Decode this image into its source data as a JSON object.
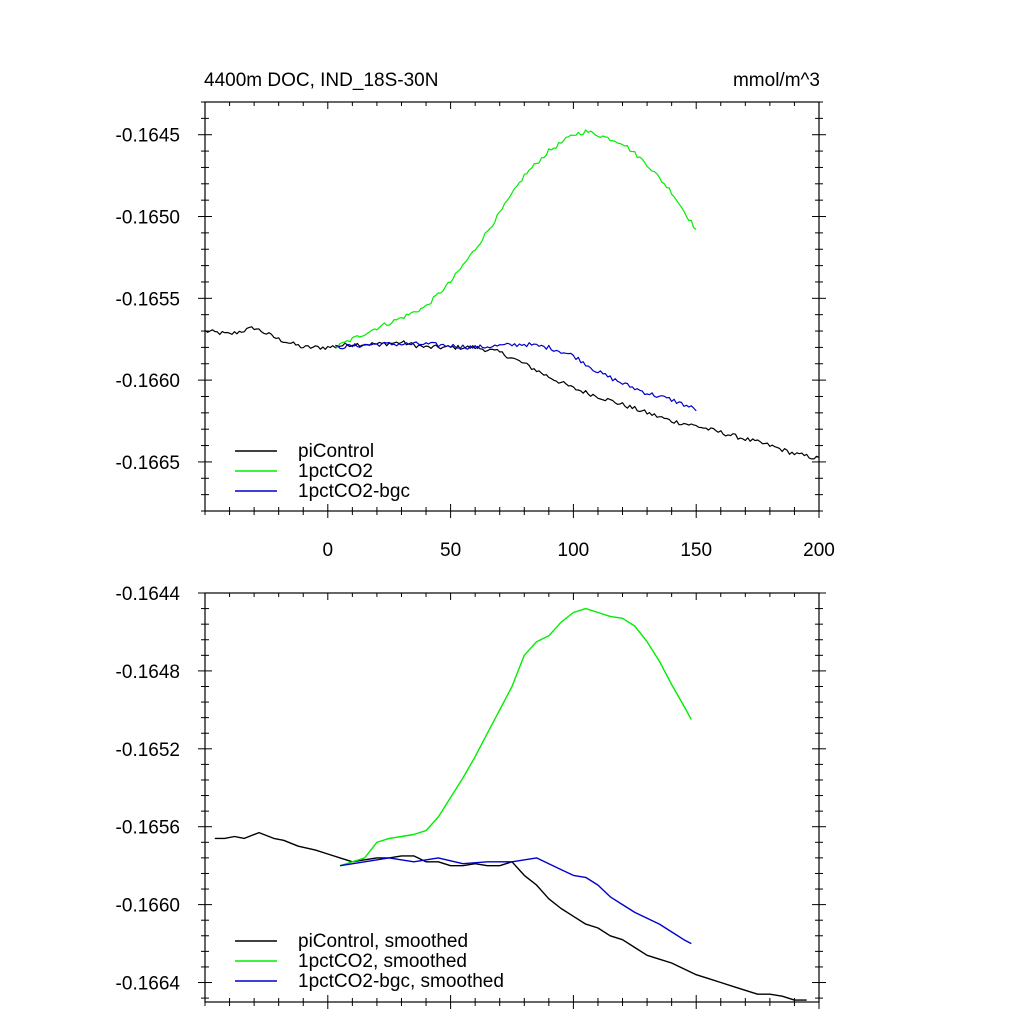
{
  "chart_data": [
    {
      "type": "line",
      "title": "4400m DOC, IND_18S-30N",
      "units": "mmol/m^3",
      "xlim": [
        -50,
        200
      ],
      "ylim": [
        -0.1668,
        -0.1643
      ],
      "x_ticks": [
        0,
        50,
        100,
        150,
        200
      ],
      "y_ticks": [
        -0.1645,
        -0.165,
        -0.1655,
        -0.166,
        -0.1665
      ],
      "x_tick_labels": [
        "0",
        "50",
        "100",
        "150",
        "200"
      ],
      "y_tick_labels": [
        "-0.1645",
        "-0.1650",
        "-0.1655",
        "-0.1660",
        "-0.1665"
      ],
      "legend": [
        "piControl",
        "1pctCO2",
        "1pctCO2-bgc"
      ],
      "noise": true,
      "series": [
        {
          "name": "piControl",
          "color": "#000000",
          "x_start": -50,
          "x_end": 200,
          "anchors": [
            [
              -50,
              -0.1657
            ],
            [
              -40,
              -0.16572
            ],
            [
              -30,
              -0.16568
            ],
            [
              -20,
              -0.16575
            ],
            [
              -10,
              -0.1658
            ],
            [
              0,
              -0.1658
            ],
            [
              10,
              -0.16578
            ],
            [
              20,
              -0.16578
            ],
            [
              30,
              -0.16577
            ],
            [
              40,
              -0.1658
            ],
            [
              50,
              -0.1658
            ],
            [
              60,
              -0.1658
            ],
            [
              70,
              -0.16583
            ],
            [
              80,
              -0.1659
            ],
            [
              90,
              -0.16598
            ],
            [
              100,
              -0.16605
            ],
            [
              110,
              -0.1661
            ],
            [
              120,
              -0.16615
            ],
            [
              130,
              -0.1662
            ],
            [
              140,
              -0.16625
            ],
            [
              150,
              -0.16628
            ],
            [
              160,
              -0.16632
            ],
            [
              170,
              -0.16636
            ],
            [
              180,
              -0.1664
            ],
            [
              190,
              -0.16645
            ],
            [
              200,
              -0.16648
            ]
          ]
        },
        {
          "name": "1pctCO2",
          "color": "#00ee00",
          "x_start": 3,
          "x_end": 150,
          "anchors": [
            [
              3,
              -0.1658
            ],
            [
              10,
              -0.16575
            ],
            [
              20,
              -0.16568
            ],
            [
              30,
              -0.16562
            ],
            [
              40,
              -0.16555
            ],
            [
              50,
              -0.1654
            ],
            [
              60,
              -0.1652
            ],
            [
              70,
              -0.16498
            ],
            [
              80,
              -0.16475
            ],
            [
              90,
              -0.1646
            ],
            [
              100,
              -0.1645
            ],
            [
              105,
              -0.16448
            ],
            [
              110,
              -0.1645
            ],
            [
              120,
              -0.16455
            ],
            [
              130,
              -0.16468
            ],
            [
              140,
              -0.16485
            ],
            [
              150,
              -0.16508
            ]
          ]
        },
        {
          "name": "1pctCO2-bgc",
          "color": "#0000cc",
          "x_start": 3,
          "x_end": 150,
          "anchors": [
            [
              3,
              -0.1658
            ],
            [
              20,
              -0.16578
            ],
            [
              40,
              -0.16578
            ],
            [
              60,
              -0.1658
            ],
            [
              80,
              -0.16578
            ],
            [
              90,
              -0.1658
            ],
            [
              100,
              -0.16585
            ],
            [
              110,
              -0.16595
            ],
            [
              120,
              -0.16602
            ],
            [
              130,
              -0.16608
            ],
            [
              140,
              -0.16612
            ],
            [
              150,
              -0.16618
            ]
          ]
        }
      ]
    },
    {
      "type": "line",
      "title": "",
      "xlim": [
        -50,
        200
      ],
      "ylim": [
        -0.1665,
        -0.1644
      ],
      "x_ticks": [
        0,
        50,
        100,
        150,
        200
      ],
      "y_ticks": [
        -0.1644,
        -0.1648,
        -0.1652,
        -0.1656,
        -0.166,
        -0.1664
      ],
      "x_tick_labels": [],
      "y_tick_labels": [
        "-0.1644",
        "-0.1648",
        "-0.1652",
        "-0.1656",
        "-0.1660",
        "-0.1664"
      ],
      "legend": [
        "piControl, smoothed",
        "1pctCO2, smoothed",
        "1pctCO2-bgc, smoothed"
      ],
      "noise": false,
      "series": [
        {
          "name": "piControl, smoothed",
          "color": "#000000",
          "points": [
            [
              -46,
              -0.16566
            ],
            [
              -42,
              -0.16566
            ],
            [
              -38,
              -0.16565
            ],
            [
              -34,
              -0.16566
            ],
            [
              -28,
              -0.16563
            ],
            [
              -22,
              -0.16566
            ],
            [
              -18,
              -0.16567
            ],
            [
              -12,
              -0.1657
            ],
            [
              -5,
              -0.16572
            ],
            [
              0,
              -0.16574
            ],
            [
              5,
              -0.16576
            ],
            [
              10,
              -0.16578
            ],
            [
              15,
              -0.16577
            ],
            [
              20,
              -0.16576
            ],
            [
              25,
              -0.16576
            ],
            [
              30,
              -0.16575
            ],
            [
              35,
              -0.16575
            ],
            [
              40,
              -0.16578
            ],
            [
              45,
              -0.16578
            ],
            [
              50,
              -0.1658
            ],
            [
              55,
              -0.1658
            ],
            [
              60,
              -0.16579
            ],
            [
              65,
              -0.1658
            ],
            [
              70,
              -0.1658
            ],
            [
              75,
              -0.16578
            ],
            [
              80,
              -0.16585
            ],
            [
              85,
              -0.1659
            ],
            [
              90,
              -0.16597
            ],
            [
              95,
              -0.16602
            ],
            [
              100,
              -0.16606
            ],
            [
              105,
              -0.1661
            ],
            [
              110,
              -0.16612
            ],
            [
              115,
              -0.16616
            ],
            [
              120,
              -0.16618
            ],
            [
              125,
              -0.16622
            ],
            [
              130,
              -0.16626
            ],
            [
              135,
              -0.16628
            ],
            [
              140,
              -0.1663
            ],
            [
              145,
              -0.16633
            ],
            [
              150,
              -0.16636
            ],
            [
              155,
              -0.16638
            ],
            [
              160,
              -0.1664
            ],
            [
              165,
              -0.16642
            ],
            [
              170,
              -0.16644
            ],
            [
              175,
              -0.16646
            ],
            [
              180,
              -0.16646
            ],
            [
              185,
              -0.16647
            ],
            [
              190,
              -0.16649
            ],
            [
              195,
              -0.16649
            ]
          ]
        },
        {
          "name": "1pctCO2, smoothed",
          "color": "#00ee00",
          "points": [
            [
              5,
              -0.1658
            ],
            [
              10,
              -0.16578
            ],
            [
              15,
              -0.16576
            ],
            [
              20,
              -0.16568
            ],
            [
              25,
              -0.16566
            ],
            [
              30,
              -0.16565
            ],
            [
              35,
              -0.16564
            ],
            [
              40,
              -0.16562
            ],
            [
              45,
              -0.16555
            ],
            [
              50,
              -0.16545
            ],
            [
              55,
              -0.16535
            ],
            [
              60,
              -0.16524
            ],
            [
              65,
              -0.16512
            ],
            [
              70,
              -0.165
            ],
            [
              75,
              -0.16488
            ],
            [
              80,
              -0.16472
            ],
            [
              85,
              -0.16465
            ],
            [
              90,
              -0.16462
            ],
            [
              95,
              -0.16455
            ],
            [
              100,
              -0.1645
            ],
            [
              105,
              -0.16448
            ],
            [
              110,
              -0.1645
            ],
            [
              115,
              -0.16452
            ],
            [
              120,
              -0.16453
            ],
            [
              125,
              -0.16457
            ],
            [
              130,
              -0.16465
            ],
            [
              135,
              -0.16475
            ],
            [
              140,
              -0.16487
            ],
            [
              145,
              -0.16498
            ],
            [
              148,
              -0.16505
            ]
          ]
        },
        {
          "name": "1pctCO2-bgc, smoothed",
          "color": "#0000cc",
          "points": [
            [
              5,
              -0.1658
            ],
            [
              15,
              -0.16578
            ],
            [
              25,
              -0.16576
            ],
            [
              35,
              -0.16578
            ],
            [
              45,
              -0.16576
            ],
            [
              55,
              -0.16579
            ],
            [
              65,
              -0.16578
            ],
            [
              75,
              -0.16578
            ],
            [
              85,
              -0.16576
            ],
            [
              90,
              -0.16579
            ],
            [
              95,
              -0.16582
            ],
            [
              100,
              -0.16585
            ],
            [
              105,
              -0.16586
            ],
            [
              110,
              -0.1659
            ],
            [
              115,
              -0.16596
            ],
            [
              120,
              -0.166
            ],
            [
              125,
              -0.16604
            ],
            [
              130,
              -0.16607
            ],
            [
              135,
              -0.1661
            ],
            [
              140,
              -0.16614
            ],
            [
              145,
              -0.16618
            ],
            [
              148,
              -0.1662
            ]
          ]
        }
      ]
    }
  ]
}
